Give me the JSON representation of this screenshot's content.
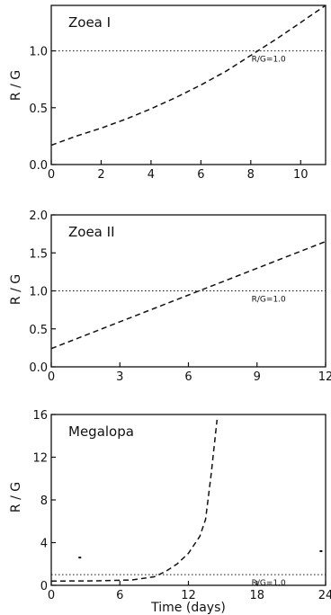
{
  "chart_data": [
    {
      "type": "line",
      "title": "Zoea I",
      "ylabel": "R / G",
      "xlabel": "",
      "xlim": [
        0,
        11
      ],
      "ylim": [
        0,
        1.4
      ],
      "xticks": [
        0,
        2,
        4,
        6,
        8,
        10
      ],
      "xtick_labels": [
        "0",
        "2",
        "4",
        "6",
        "8",
        "10"
      ],
      "yticks": [
        0,
        0.5,
        1.0
      ],
      "ytick_labels": [
        "0.0",
        "0.5",
        "1.0"
      ],
      "reference_line": {
        "y": 1.0,
        "label": "R/G=1.0"
      },
      "series": [
        {
          "x": [
            0,
            1,
            2,
            3,
            4,
            5,
            6,
            7,
            8,
            9,
            10,
            11
          ],
          "y": [
            0.17,
            0.25,
            0.32,
            0.4,
            0.49,
            0.59,
            0.7,
            0.82,
            0.96,
            1.1,
            1.25,
            1.4
          ]
        }
      ],
      "markers": []
    },
    {
      "type": "line",
      "title": "Zoea II",
      "ylabel": "R / G",
      "xlabel": "",
      "xlim": [
        0,
        12
      ],
      "ylim": [
        0,
        2.0
      ],
      "xticks": [
        0,
        3,
        6,
        9,
        12
      ],
      "xtick_labels": [
        "0",
        "3",
        "6",
        "9",
        "12"
      ],
      "yticks": [
        0,
        0.5,
        1.0,
        1.5,
        2.0
      ],
      "ytick_labels": [
        "0.0",
        "0.5",
        "1.0",
        "1.5",
        "2.0"
      ],
      "reference_line": {
        "y": 1.0,
        "label": "R/G=1.0"
      },
      "series": [
        {
          "x": [
            0,
            12
          ],
          "y": [
            0.24,
            1.65
          ]
        }
      ],
      "markers": []
    },
    {
      "type": "line",
      "title": "Megalopa",
      "ylabel": "R / G",
      "xlabel": "Time (days)",
      "xlim": [
        0,
        24
      ],
      "ylim": [
        0,
        16
      ],
      "xticks": [
        0,
        6,
        12,
        18,
        24
      ],
      "xtick_labels": [
        "0",
        "6",
        "12",
        "18",
        "24"
      ],
      "yticks": [
        0,
        4,
        8,
        12,
        16
      ],
      "ytick_labels": [
        "0",
        "4",
        "8",
        "12",
        "16"
      ],
      "reference_line": {
        "y": 1.0,
        "label": "R/G=1.0"
      },
      "series": [
        {
          "x": [
            0,
            4,
            7,
            9,
            10,
            11,
            12,
            13,
            13.5,
            14,
            14.5
          ],
          "y": [
            0.4,
            0.42,
            0.5,
            0.8,
            1.3,
            2.0,
            3.0,
            4.6,
            6.2,
            10.5,
            15.5
          ]
        }
      ],
      "markers": [
        {
          "x": 2.5,
          "y": 2.6
        },
        {
          "x": 23.6,
          "y": 3.2
        }
      ]
    }
  ]
}
